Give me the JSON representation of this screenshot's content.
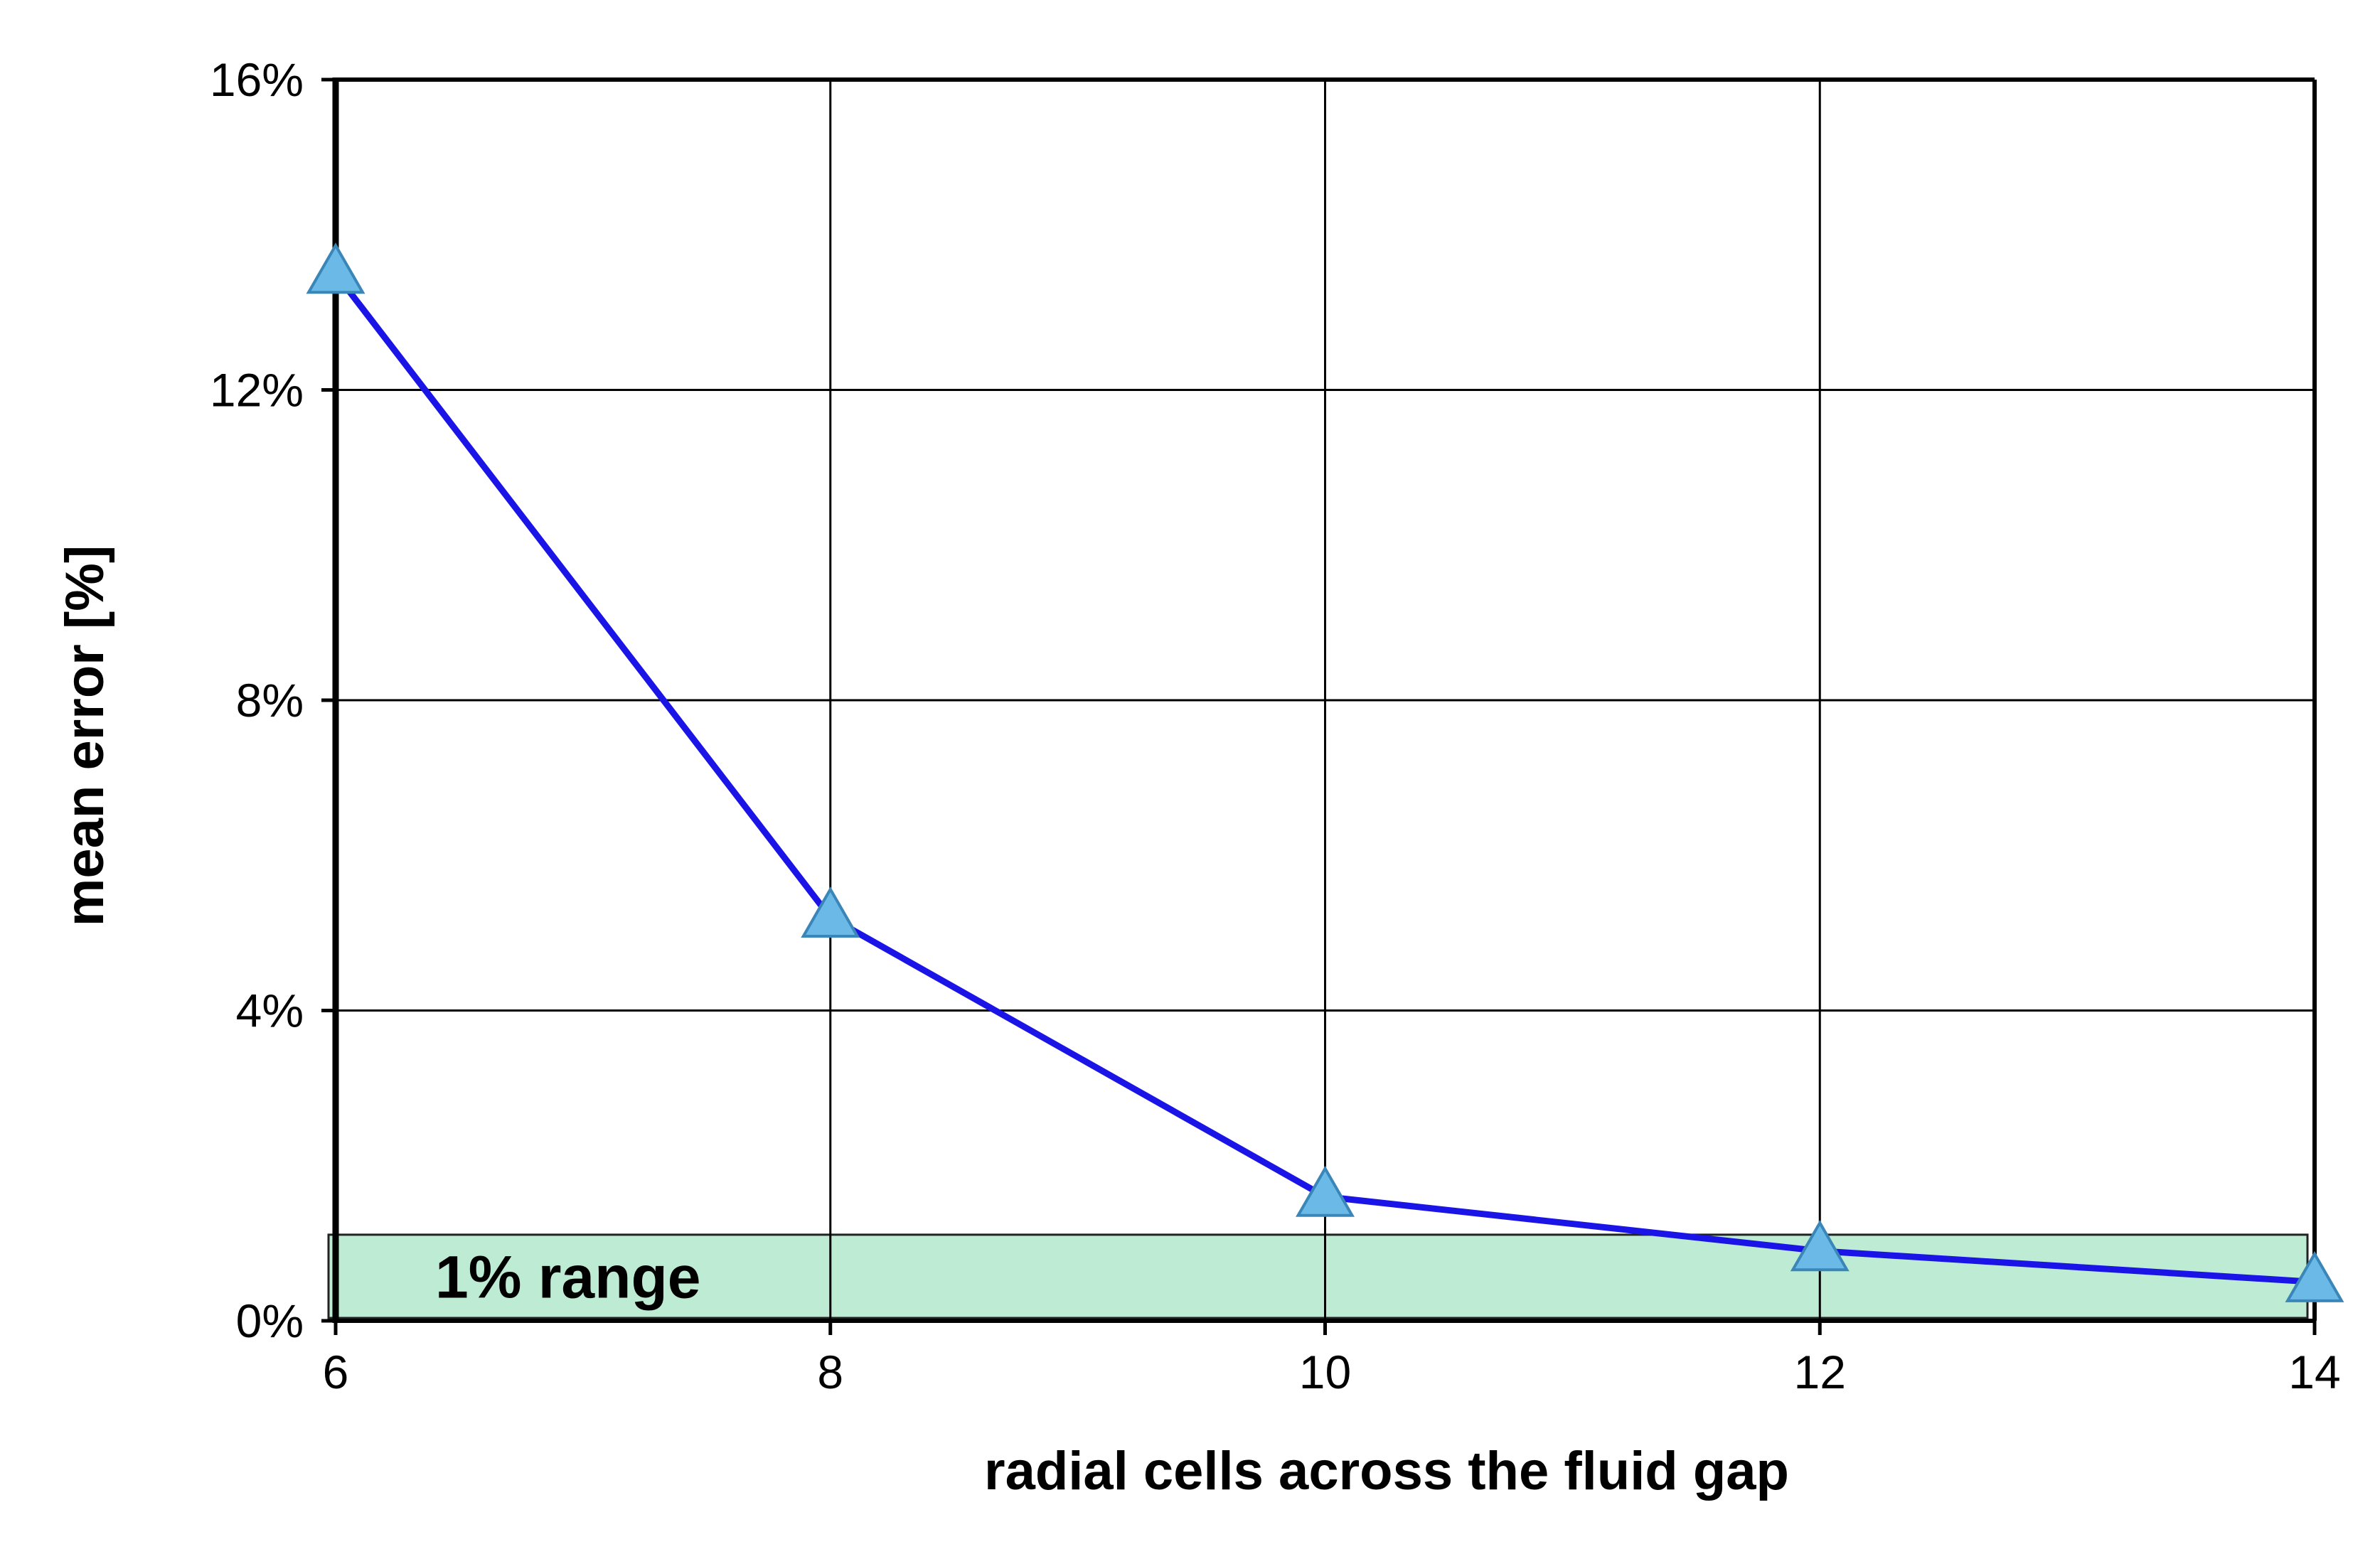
{
  "chart_data": {
    "type": "line",
    "title": "",
    "xlabel": "radial cells across the fluid gap",
    "ylabel": "mean error [%]",
    "x": [
      6,
      8,
      10,
      12,
      14
    ],
    "series": [
      {
        "name": "mean error",
        "values": [
          13.5,
          5.2,
          1.6,
          0.9,
          0.5
        ],
        "line_color": "#1a14e6",
        "marker": "triangle",
        "marker_fill": "#6ab9e6",
        "marker_edge": "#3a86b8"
      }
    ],
    "xlim": [
      6,
      14
    ],
    "ylim": [
      0,
      16
    ],
    "x_ticks": [
      6,
      8,
      10,
      12,
      14
    ],
    "y_ticks": [
      0,
      4,
      8,
      12,
      16
    ],
    "y_tick_labels": [
      "0%",
      "4%",
      "8%",
      "12%",
      "16%"
    ],
    "grid": true,
    "annotations": [
      {
        "type": "band",
        "label": "1% range",
        "y_from": 0,
        "y_to": 1,
        "fill": "#bdebd3",
        "edge": "#222222"
      }
    ]
  }
}
